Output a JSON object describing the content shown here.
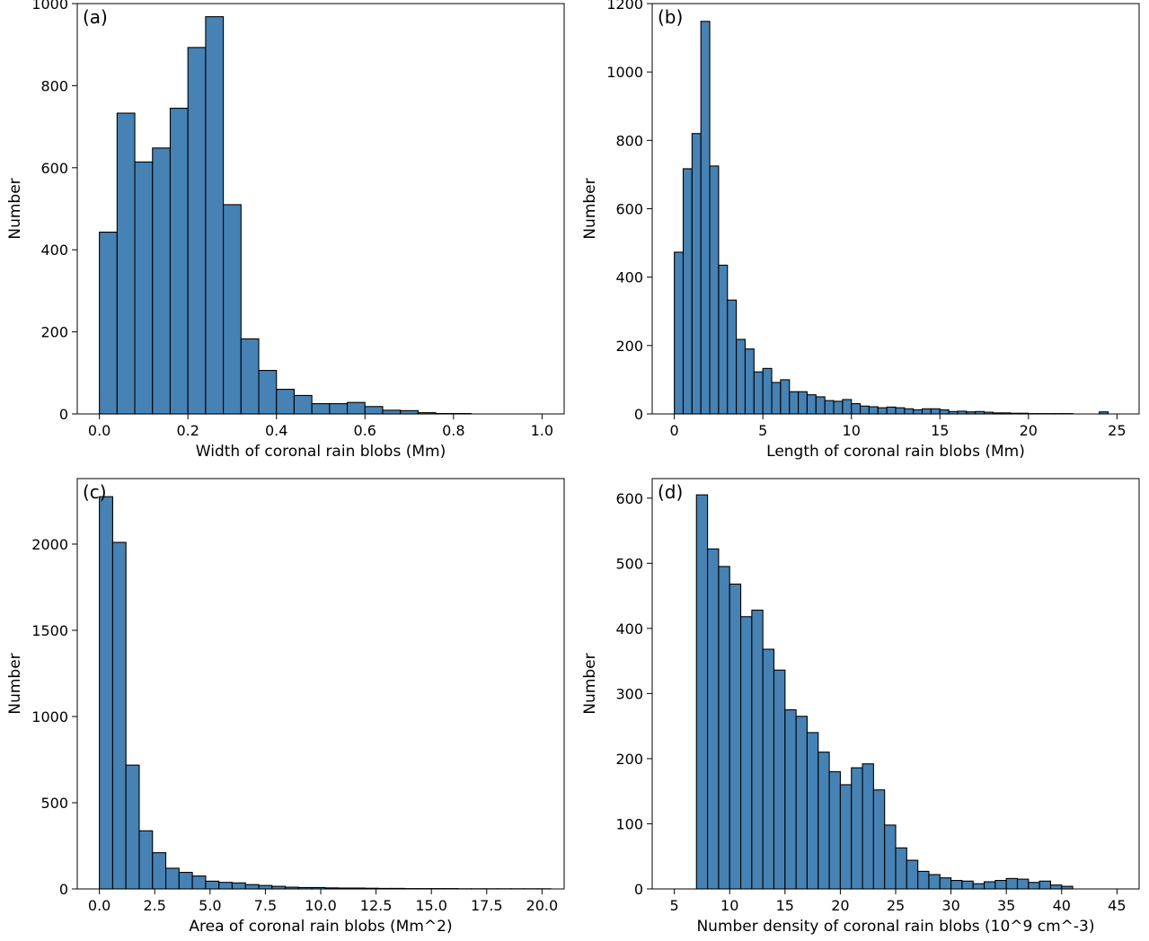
{
  "chart_data": [
    {
      "type": "bar",
      "panel_label": "(a)",
      "xlabel": "Width of coronal rain blobs (Mm)",
      "ylabel": "Number",
      "xlim": [
        -0.05,
        1.05
      ],
      "ylim": [
        0,
        1000
      ],
      "xticks": [
        0.0,
        0.2,
        0.4,
        0.6,
        0.8,
        1.0
      ],
      "xtick_labels": [
        "0.0",
        "0.2",
        "0.4",
        "0.6",
        "0.8",
        "1.0"
      ],
      "yticks": [
        0,
        200,
        400,
        600,
        800,
        1000
      ],
      "ytick_labels": [
        "0",
        "200",
        "400",
        "600",
        "800",
        "1000"
      ],
      "bin_start": 0.0,
      "bin_width": 0.04,
      "values": [
        443,
        733,
        614,
        648,
        745,
        893,
        968,
        510,
        183,
        106,
        60,
        45,
        25,
        25,
        28,
        18,
        9,
        8,
        3,
        1,
        1,
        0,
        0,
        0,
        0
      ],
      "color": "#4682b4",
      "edgecolor": "#000000"
    },
    {
      "type": "bar",
      "panel_label": "(b)",
      "xlabel": "Length of coronal rain blobs (Mm)",
      "ylabel": "Number",
      "xlim": [
        -1.25,
        26.25
      ],
      "ylim": [
        0,
        1200
      ],
      "xticks": [
        0,
        5,
        10,
        15,
        20,
        25
      ],
      "xtick_labels": [
        "0",
        "5",
        "10",
        "15",
        "20",
        "25"
      ],
      "yticks": [
        0,
        200,
        400,
        600,
        800,
        1000,
        1200
      ],
      "ytick_labels": [
        "0",
        "200",
        "400",
        "600",
        "800",
        "1000",
        "1200"
      ],
      "bin_start": 0.0,
      "bin_width": 0.5,
      "values": [
        473,
        717,
        820,
        1148,
        725,
        435,
        333,
        218,
        190,
        123,
        133,
        92,
        100,
        65,
        65,
        56,
        50,
        39,
        37,
        42,
        30,
        23,
        21,
        18,
        20,
        18,
        15,
        12,
        15,
        15,
        12,
        7,
        8,
        6,
        7,
        5,
        3,
        3,
        2,
        2,
        1,
        1,
        1,
        1,
        1,
        0,
        0,
        0,
        6,
        0
      ],
      "color": "#4682b4",
      "edgecolor": "#000000"
    },
    {
      "type": "bar",
      "panel_label": "(c)",
      "xlabel": "Area of coronal rain blobs (Mm^2)",
      "ylabel": "Number",
      "xlim": [
        -1.0,
        21.0
      ],
      "ylim": [
        0,
        2380
      ],
      "xticks": [
        0.0,
        2.5,
        5.0,
        7.5,
        10.0,
        12.5,
        15.0,
        17.5,
        20.0
      ],
      "xtick_labels": [
        "0.0",
        "2.5",
        "5.0",
        "7.5",
        "10.0",
        "12.5",
        "15.0",
        "17.5",
        "20.0"
      ],
      "yticks": [
        0,
        500,
        1000,
        1500,
        2000
      ],
      "ytick_labels": [
        "0",
        "500",
        "1000",
        "1500",
        "2000"
      ],
      "bin_start": 0.0,
      "bin_width": 0.6,
      "values": [
        2275,
        2010,
        718,
        337,
        210,
        120,
        96,
        75,
        45,
        38,
        35,
        25,
        20,
        15,
        10,
        8,
        8,
        6,
        5,
        5,
        4,
        3,
        3,
        2,
        2,
        2,
        2,
        1,
        1,
        1,
        1,
        1,
        1,
        1
      ],
      "color": "#4682b4",
      "edgecolor": "#000000"
    },
    {
      "type": "bar",
      "panel_label": "(d)",
      "xlabel": "Number density of coronal rain blobs (10^9 cm^-3)",
      "ylabel": "Number",
      "xlim": [
        3.0,
        47.0
      ],
      "ylim": [
        0,
        630
      ],
      "xticks": [
        5,
        10,
        15,
        20,
        25,
        30,
        35,
        40,
        45
      ],
      "xtick_labels": [
        "5",
        "10",
        "15",
        "20",
        "25",
        "30",
        "35",
        "40",
        "45"
      ],
      "yticks": [
        0,
        100,
        200,
        300,
        400,
        500,
        600
      ],
      "ytick_labels": [
        "0",
        "100",
        "200",
        "300",
        "400",
        "500",
        "600"
      ],
      "bin_start": 7.0,
      "bin_width": 1.0,
      "values": [
        605,
        522,
        495,
        468,
        418,
        428,
        368,
        336,
        275,
        265,
        240,
        210,
        180,
        160,
        186,
        192,
        152,
        98,
        63,
        44,
        27,
        22,
        17,
        13,
        12,
        8,
        11,
        13,
        16,
        15,
        10,
        12,
        6,
        4,
        0,
        0,
        0,
        0
      ],
      "color": "#4682b4",
      "edgecolor": "#000000"
    }
  ]
}
